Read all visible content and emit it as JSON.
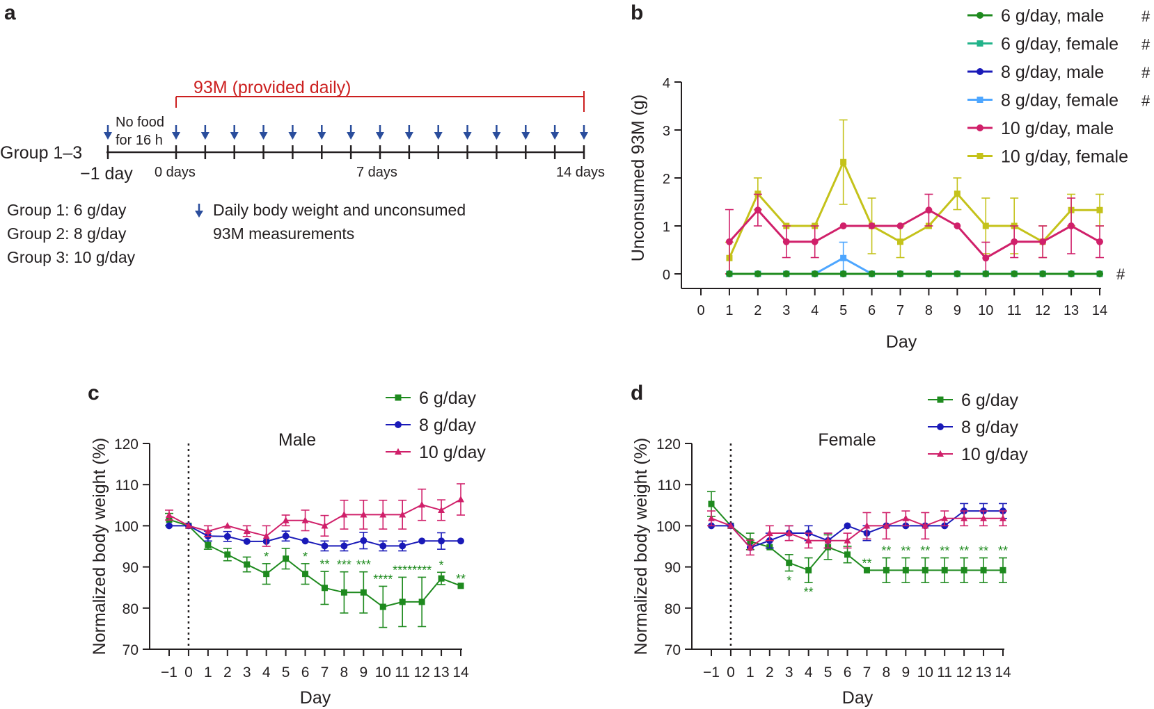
{
  "colors": {
    "green": "#1e8a1e",
    "teal": "#22b38a",
    "blue": "#1a1ab8",
    "lightblue": "#4da6ff",
    "magenta": "#d0206a",
    "yellow": "#c4c21a",
    "red": "#cc1f1f",
    "arrow": "#2a4d9c",
    "axis": "#231f20"
  },
  "panel_a": {
    "label": "a",
    "bracket_label": "93M (provided daily)",
    "group_label": "Group 1–3",
    "no_food_line1": "No food",
    "no_food_line2": "for 16 h",
    "tick_minus1": "−1 day",
    "tick_0": "0 days",
    "tick_7": "7 days",
    "tick_14": "14 days",
    "groups": [
      "Group 1:  6 g/day",
      "Group 2:  8 g/day",
      "Group 3:  10 g/day"
    ],
    "legend_line1": "Daily body weight and unconsumed",
    "legend_line2": "93M measurements",
    "arrow_icon": "down-arrow-icon"
  },
  "chart_data": [
    {
      "id": "b",
      "type": "line",
      "panel_label": "b",
      "title": "",
      "xlabel": "Day",
      "ylabel": "Unconsumed 93M (g)",
      "xlim": [
        0,
        14
      ],
      "ylim": [
        0,
        4
      ],
      "xticks": [
        "0",
        "1",
        "2",
        "3",
        "4",
        "5",
        "6",
        "7",
        "8",
        "9",
        "10",
        "11",
        "12",
        "13",
        "14"
      ],
      "yticks": [
        "0",
        "1",
        "2",
        "3",
        "4"
      ],
      "x": [
        1,
        2,
        3,
        4,
        5,
        6,
        7,
        8,
        9,
        10,
        11,
        12,
        13,
        14
      ],
      "series_marker": "#",
      "legend_position": "top-right",
      "series": [
        {
          "name": "6 g/day, male",
          "marker": "circle",
          "color_key": "green",
          "suffix": "#",
          "values": [
            0,
            0,
            0,
            0,
            0,
            0,
            0,
            0,
            0,
            0,
            0,
            0,
            0,
            0
          ],
          "errors": [
            0,
            0,
            0,
            0,
            0,
            0,
            0,
            0,
            0,
            0,
            0,
            0,
            0,
            0
          ]
        },
        {
          "name": "6 g/day, female",
          "marker": "square",
          "color_key": "teal",
          "suffix": "#",
          "values": [
            0,
            0,
            0,
            0,
            0,
            0,
            0,
            0,
            0,
            0,
            0,
            0,
            0,
            0
          ],
          "errors": [
            0,
            0,
            0,
            0,
            0,
            0,
            0,
            0,
            0,
            0,
            0,
            0,
            0,
            0
          ]
        },
        {
          "name": "8 g/day, male",
          "marker": "circle",
          "color_key": "blue",
          "suffix": "#",
          "values": [
            0,
            0,
            0,
            0,
            0,
            0,
            0,
            0,
            0,
            0,
            0,
            0,
            0,
            0
          ],
          "errors": [
            0,
            0,
            0,
            0,
            0,
            0,
            0,
            0,
            0,
            0,
            0,
            0,
            0,
            0
          ]
        },
        {
          "name": "8 g/day, female",
          "marker": "square",
          "color_key": "lightblue",
          "suffix": "#",
          "values": [
            0,
            0,
            0,
            0,
            0.33,
            0,
            0,
            0,
            0,
            0,
            0,
            0,
            0,
            0
          ],
          "errors": [
            0,
            0,
            0,
            0,
            0.33,
            0,
            0,
            0,
            0,
            0,
            0,
            0,
            0,
            0
          ]
        },
        {
          "name": "10 g/day, male",
          "marker": "circle",
          "color_key": "magenta",
          "suffix": "",
          "values": [
            0.67,
            1.33,
            0.67,
            0.67,
            1,
            1,
            1,
            1.33,
            1,
            0.33,
            0.67,
            0.67,
            1,
            0.67
          ],
          "errors": [
            0.67,
            0.33,
            0.33,
            0.33,
            0,
            0,
            0,
            0.33,
            0,
            0.33,
            0.33,
            0.33,
            0.58,
            0.33
          ]
        },
        {
          "name": "10 g/day, female",
          "marker": "square",
          "color_key": "yellow",
          "suffix": "",
          "values": [
            0.33,
            1.67,
            1,
            1,
            2.33,
            1,
            0.67,
            1,
            1.67,
            1,
            1,
            0.67,
            1.33,
            1.33
          ],
          "errors": [
            0.33,
            0.33,
            0,
            0,
            0.88,
            0.58,
            0.33,
            0,
            0.33,
            0.58,
            0.58,
            0.33,
            0.33,
            0.33
          ]
        }
      ]
    },
    {
      "id": "c",
      "type": "line",
      "panel_label": "c",
      "title": "Male",
      "xlabel": "Day",
      "ylabel": "Normalized body weight (%)",
      "xlim": [
        -1,
        14
      ],
      "ylim": [
        70,
        120
      ],
      "xticks": [
        "−1",
        "0",
        "1",
        "2",
        "3",
        "4",
        "5",
        "6",
        "7",
        "8",
        "9",
        "10",
        "11",
        "12",
        "13",
        "14"
      ],
      "yticks": [
        "70",
        "80",
        "90",
        "100",
        "110",
        "120"
      ],
      "x": [
        -1,
        0,
        1,
        2,
        3,
        4,
        5,
        6,
        7,
        8,
        9,
        10,
        11,
        12,
        13,
        14
      ],
      "legend_position": "top-right",
      "series": [
        {
          "name": "6 g/day",
          "marker": "square",
          "color_key": "green",
          "values": [
            101.5,
            100,
            95.3,
            93,
            90.6,
            88.3,
            92,
            88.3,
            84.9,
            83.8,
            83.8,
            80.3,
            81.5,
            81.5,
            87.2,
            85.4
          ],
          "errors": [
            1.5,
            0,
            1,
            1.5,
            1.8,
            2.5,
            2.5,
            2.5,
            4,
            5,
            5,
            5,
            6,
            6,
            1.5,
            0
          ]
        },
        {
          "name": "8 g/day",
          "marker": "circle",
          "color_key": "blue",
          "values": [
            100,
            100,
            97.5,
            97.4,
            96.2,
            96.2,
            97.5,
            96.3,
            95.1,
            95.1,
            96.4,
            95.1,
            95.1,
            96.3,
            96.3,
            96.3
          ],
          "errors": [
            0,
            0,
            1.2,
            1.2,
            0,
            0,
            1.2,
            0,
            1.2,
            1.2,
            2,
            1.2,
            1.2,
            0,
            2,
            0
          ]
        },
        {
          "name": "10 g/day",
          "marker": "triangle",
          "color_key": "magenta",
          "values": [
            102.6,
            100,
            98.7,
            100,
            98.7,
            97.5,
            101.3,
            101.3,
            100,
            102.7,
            102.7,
            102.7,
            102.7,
            105.1,
            103.8,
            106.4
          ],
          "errors": [
            1.2,
            0,
            1.3,
            0,
            1.3,
            2.5,
            1.3,
            2.5,
            2.5,
            3.5,
            3.5,
            3.5,
            3.5,
            3.8,
            2.5,
            3.8
          ]
        }
      ],
      "annotations": [
        {
          "x": 4,
          "text": "*"
        },
        {
          "x": 6,
          "text": "*"
        },
        {
          "x": 7,
          "text": "**"
        },
        {
          "x": 8,
          "text": "***"
        },
        {
          "x": 9,
          "text": "***"
        },
        {
          "x": 10,
          "text": "****"
        },
        {
          "x": 11,
          "text": "****"
        },
        {
          "x": 12,
          "text": "****"
        },
        {
          "x": 13,
          "text": "*"
        },
        {
          "x": 14,
          "text": "**"
        }
      ]
    },
    {
      "id": "d",
      "type": "line",
      "panel_label": "d",
      "title": "Female",
      "xlabel": "Day",
      "ylabel": "Normalized body weight (%)",
      "xlim": [
        -1,
        14
      ],
      "ylim": [
        70,
        120
      ],
      "xticks": [
        "−1",
        "0",
        "1",
        "2",
        "3",
        "4",
        "5",
        "6",
        "7",
        "8",
        "9",
        "10",
        "11",
        "12",
        "13",
        "14"
      ],
      "yticks": [
        "70",
        "80",
        "90",
        "100",
        "110",
        "120"
      ],
      "x": [
        -1,
        0,
        1,
        2,
        3,
        4,
        5,
        6,
        7,
        8,
        9,
        10,
        11,
        12,
        13,
        14
      ],
      "legend_position": "top-right",
      "series": [
        {
          "name": "6 g/day",
          "marker": "square",
          "color_key": "green",
          "values": [
            105.3,
            100,
            96.2,
            94.8,
            91,
            89.2,
            94.8,
            93,
            89.2,
            89.2,
            89.2,
            89.2,
            89.2,
            89.2,
            89.2,
            89.2
          ],
          "errors": [
            3,
            0,
            2,
            0,
            2,
            3,
            3,
            2,
            0,
            3,
            3,
            3,
            3,
            3,
            3,
            3
          ]
        },
        {
          "name": "8 g/day",
          "marker": "circle",
          "color_key": "blue",
          "values": [
            100,
            100,
            94.7,
            96.4,
            98.2,
            98.2,
            96.4,
            100,
            98.2,
            100,
            100,
            100,
            100,
            103.6,
            103.6,
            103.6
          ],
          "errors": [
            0,
            0,
            0,
            1.8,
            1.8,
            1.8,
            1.8,
            0,
            1.8,
            0,
            0,
            0,
            0,
            1.8,
            1.8,
            1.8
          ]
        },
        {
          "name": "10 g/day",
          "marker": "triangle",
          "color_key": "magenta",
          "values": [
            101.8,
            100,
            94.7,
            98.2,
            98.2,
            96.4,
            96.4,
            96.4,
            100,
            100,
            101.8,
            100,
            101.8,
            101.8,
            101.8,
            101.8
          ],
          "errors": [
            1.8,
            0,
            1.8,
            1.8,
            1.8,
            1.8,
            1.8,
            1.8,
            3.2,
            3.2,
            1.8,
            3.2,
            1.8,
            1.8,
            1.8,
            1.8
          ]
        }
      ],
      "annotations": [
        {
          "x": 3,
          "text": "*",
          "pos": "below"
        },
        {
          "x": 4,
          "text": "**",
          "pos": "below"
        },
        {
          "x": 7,
          "text": "**"
        },
        {
          "x": 8,
          "text": "**"
        },
        {
          "x": 9,
          "text": "**"
        },
        {
          "x": 10,
          "text": "**"
        },
        {
          "x": 11,
          "text": "**"
        },
        {
          "x": 12,
          "text": "**"
        },
        {
          "x": 13,
          "text": "**"
        },
        {
          "x": 14,
          "text": "**"
        }
      ]
    }
  ]
}
